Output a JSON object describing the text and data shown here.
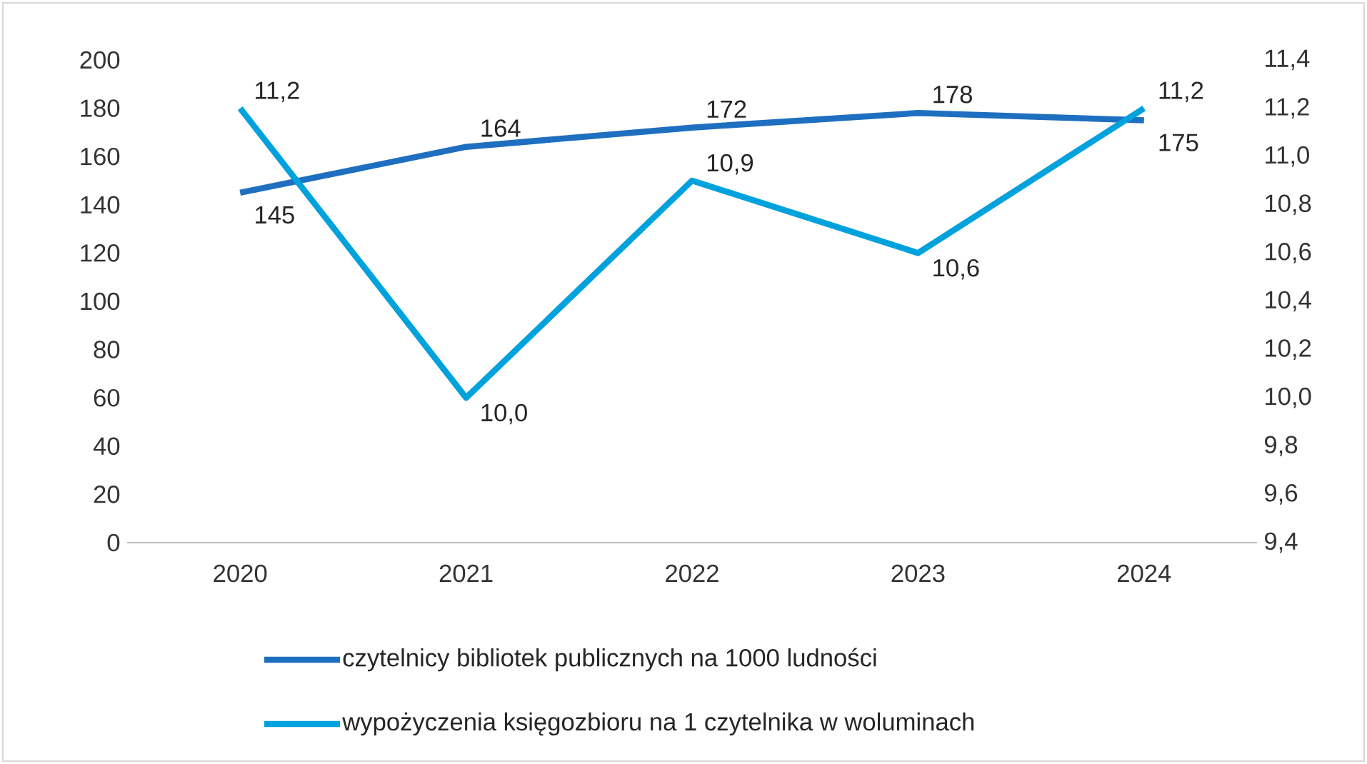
{
  "chart_data": {
    "type": "line",
    "categories": [
      "2020",
      "2021",
      "2022",
      "2023",
      "2024"
    ],
    "series": [
      {
        "name": "czytelnicy bibliotek publicznych na 1000 ludności",
        "color": "#1f6fc0",
        "values": [
          145,
          164,
          172,
          178,
          175
        ],
        "value_labels": [
          "145",
          "164",
          "172",
          "178",
          "175"
        ]
      },
      {
        "name": "wypożyczenia księgozbioru na 1 czytelnika w woluminach",
        "color": "#00a2de",
        "axis": "y2",
        "values": [
          11.2,
          10.0,
          10.9,
          10.6,
          11.2
        ],
        "value_labels": [
          "11,2",
          "10,0",
          "10,9",
          "10,6",
          "11,2"
        ]
      }
    ],
    "ylim": [
      0,
      200
    ],
    "yticks": [
      0,
      20,
      40,
      60,
      80,
      100,
      120,
      140,
      160,
      180,
      200
    ],
    "y2lim": [
      9.4,
      11.4
    ],
    "y2ticks": [
      {
        "value": 9.4,
        "label": "9,4"
      },
      {
        "value": 9.6,
        "label": "9,6"
      },
      {
        "value": 9.8,
        "label": "9,8"
      },
      {
        "value": 10.0,
        "label": "10,0"
      },
      {
        "value": 10.2,
        "label": "10,2"
      },
      {
        "value": 10.4,
        "label": "10,4"
      },
      {
        "value": 10.6,
        "label": "10,6"
      },
      {
        "value": 10.8,
        "label": "10,8"
      },
      {
        "value": 11.0,
        "label": "11,0"
      },
      {
        "value": 11.2,
        "label": "11,2"
      },
      {
        "value": 11.4,
        "label": "11,4"
      }
    ],
    "grid": false,
    "legend": "bottom",
    "marker": "none",
    "line_style": "solid"
  }
}
